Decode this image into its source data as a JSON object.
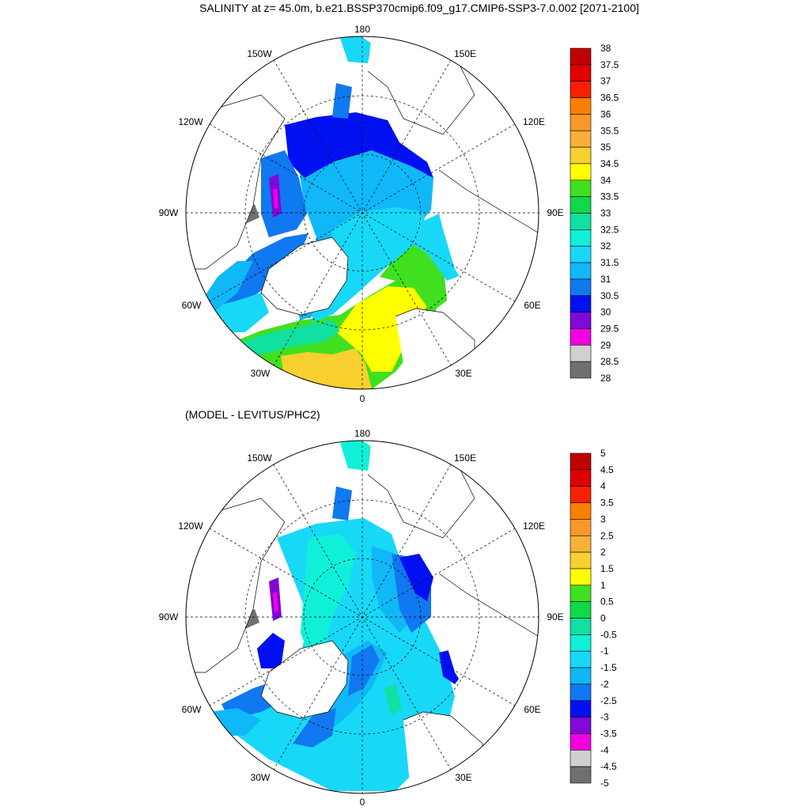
{
  "title": "SALINITY at z=  45.0m, b.e21.BSSP370cmip6.f09_g17.CMIP6-SSP3-7.0.002 [2071-2100]",
  "panel2_title": "(MODEL - LEVITUS/PHC2)",
  "lon_labels": {
    "top": "180",
    "bottom": "0",
    "left_upper": "150W",
    "right_upper": "150E",
    "left_mid_upper": "120W",
    "right_mid_upper": "120E",
    "left": "90W",
    "right": "90E",
    "left_mid_lower": "60W",
    "right_mid_lower": "60E",
    "left_lower": "30W",
    "right_lower": "30E"
  },
  "colorbar_top": {
    "labels": [
      "38",
      "37.5",
      "37",
      "36.5",
      "36",
      "35.5",
      "35",
      "34.5",
      "34",
      "33.5",
      "33",
      "32.5",
      "32",
      "31.5",
      "31",
      "30.5",
      "30",
      "29.5",
      "29",
      "28.5",
      "28"
    ],
    "colors": [
      "#c00000",
      "#e00000",
      "#f82000",
      "#f88000",
      "#f89828",
      "#f8b038",
      "#f8d030",
      "#ffff00",
      "#40e020",
      "#10d848",
      "#10e0a0",
      "#10f0d8",
      "#18d8f8",
      "#10b8f8",
      "#1078f0",
      "#0010f0",
      "#8008d8",
      "#f000e0",
      "#d0d0d0",
      "#707070"
    ]
  },
  "colorbar_bottom": {
    "labels": [
      "5",
      "4.5",
      "4",
      "3.5",
      "3",
      "2.5",
      "2",
      "1.5",
      "1",
      "0.5",
      "0",
      "-0.5",
      "-1",
      "-1.5",
      "-2",
      "-2.5",
      "-3",
      "-3.5",
      "-4",
      "-4.5",
      "-5"
    ],
    "colors": [
      "#c00000",
      "#e00000",
      "#f82000",
      "#f88000",
      "#f89828",
      "#f8b038",
      "#f8d030",
      "#ffff00",
      "#40e020",
      "#10d848",
      "#10e0a0",
      "#10f0d8",
      "#18d8f8",
      "#10b8f8",
      "#1078f0",
      "#0010f0",
      "#8008d8",
      "#f000e0",
      "#d0d0d0",
      "#707070"
    ]
  }
}
